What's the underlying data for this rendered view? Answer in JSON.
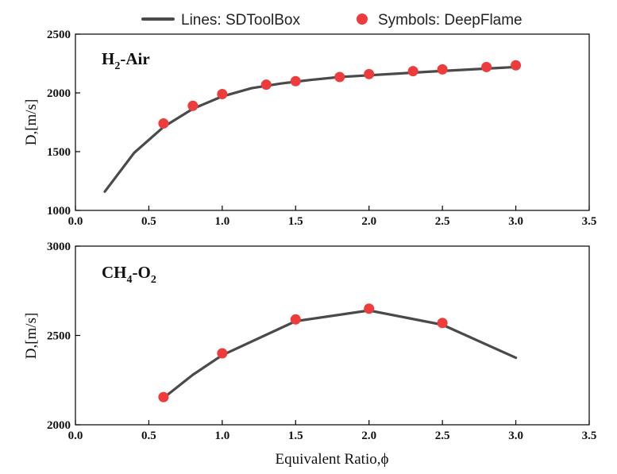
{
  "legend": {
    "line_label": "Lines: SDToolBox",
    "symbol_label": "Symbols: DeepFlame"
  },
  "colors": {
    "line": "#4a4a4a",
    "symbol": "#ee3b3b",
    "axis": "#000000"
  },
  "xlabel": "Equivalent Ratio,ϕ",
  "chart_data": [
    {
      "type": "line",
      "panel_label": {
        "main": "H",
        "sub1": "2",
        "tail": "-Air"
      },
      "ylabel": "D,[m/s]",
      "xlim": [
        0.0,
        3.5
      ],
      "ylim": [
        1000,
        2500
      ],
      "xticks": [
        "0.0",
        "0.5",
        "1.0",
        "1.5",
        "2.0",
        "2.5",
        "3.0",
        "3.5"
      ],
      "yticks": [
        "1000",
        "1500",
        "2000",
        "2500"
      ],
      "series": [
        {
          "name": "Lines: SDToolBox",
          "style": "line",
          "x": [
            0.2,
            0.4,
            0.6,
            0.8,
            1.0,
            1.2,
            1.4,
            1.6,
            1.8,
            2.0,
            2.2,
            2.4,
            2.6,
            2.8,
            3.0
          ],
          "y": [
            1160,
            1490,
            1710,
            1865,
            1970,
            2040,
            2080,
            2110,
            2135,
            2150,
            2165,
            2180,
            2193,
            2207,
            2220
          ]
        },
        {
          "name": "Symbols: DeepFlame",
          "style": "scatter",
          "x": [
            0.6,
            0.8,
            1.0,
            1.3,
            1.5,
            1.8,
            2.0,
            2.3,
            2.5,
            2.8,
            3.0
          ],
          "y": [
            1740,
            1890,
            1990,
            2070,
            2100,
            2135,
            2160,
            2185,
            2200,
            2220,
            2235
          ]
        }
      ]
    },
    {
      "type": "line",
      "panel_label": {
        "main": "CH",
        "sub1": "4",
        "mid": "-O",
        "sub2": "2"
      },
      "ylabel": "D,[m/s]",
      "xlim": [
        0.0,
        3.5
      ],
      "ylim": [
        2000,
        3000
      ],
      "xticks": [
        "0.0",
        "0.5",
        "1.0",
        "1.5",
        "2.0",
        "2.5",
        "3.0",
        "3.5"
      ],
      "yticks": [
        "2000",
        "2500",
        "3000"
      ],
      "series": [
        {
          "name": "Lines: SDToolBox",
          "style": "line",
          "x": [
            0.6,
            0.8,
            1.0,
            1.5,
            2.0,
            2.5,
            3.0
          ],
          "y": [
            2150,
            2280,
            2390,
            2580,
            2640,
            2560,
            2375
          ]
        },
        {
          "name": "Symbols: DeepFlame",
          "style": "scatter",
          "x": [
            0.6,
            1.0,
            1.5,
            2.0,
            2.5
          ],
          "y": [
            2155,
            2400,
            2590,
            2650,
            2570
          ]
        }
      ]
    }
  ]
}
